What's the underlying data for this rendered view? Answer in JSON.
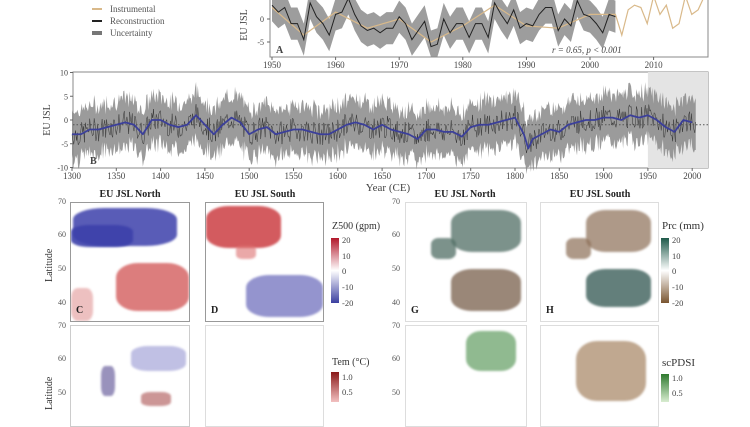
{
  "legend": {
    "items": [
      {
        "label": "Instrumental",
        "color": "#d9b98a"
      },
      {
        "label": "Reconstruction",
        "color": "#222222"
      },
      {
        "label": "Uncertainty",
        "color": "#777777"
      }
    ]
  },
  "chart_data": [
    {
      "type": "line",
      "panel": "A",
      "ylabel": "EU JSL",
      "xlim": [
        1949,
        2019
      ],
      "ylim": [
        -7,
        5
      ],
      "xticks": [
        "1950",
        "1960",
        "1970",
        "1980",
        "1990",
        "2000",
        "2010"
      ],
      "yticks": [
        "0",
        "-5"
      ],
      "annotation": "r = 0.65, p < 0.001",
      "series": [
        {
          "name": "Reconstruction",
          "color": "#222222",
          "x": [
            1950,
            1951,
            1952,
            1953,
            1954,
            1955,
            1956,
            1957,
            1958,
            1959,
            1960,
            1961,
            1962,
            1963,
            1964,
            1965,
            1966,
            1967,
            1968,
            1969,
            1970,
            1971,
            1972,
            1973,
            1974,
            1975,
            1976,
            1977,
            1978,
            1979,
            1980,
            1981,
            1982,
            1983,
            1984,
            1985,
            1986,
            1987,
            1988,
            1989,
            1990,
            1991,
            1992,
            1993,
            1994,
            1995,
            1996,
            1997,
            1998,
            1999,
            2000,
            2001,
            2002,
            2003,
            2004
          ],
          "y": [
            3,
            1.5,
            2.5,
            -1,
            -1,
            -4.5,
            3.5,
            0.5,
            -1,
            -3.5,
            1,
            1.5,
            4.5,
            1,
            -1.5,
            -2.5,
            -2,
            -3,
            -2,
            -2,
            0.5,
            -1,
            -4.5,
            -2.5,
            -0.5,
            -6,
            -5.5,
            0,
            -3,
            -1,
            -1,
            -4,
            -1,
            -1,
            -4,
            3.5,
            1,
            -1,
            2,
            -2,
            -1,
            -1.5,
            1,
            2.5,
            2.5,
            -2.5,
            0,
            -1.5,
            4,
            1,
            0.5,
            -1,
            -3,
            1,
            0.5
          ]
        },
        {
          "name": "Instrumental",
          "color": "#d9b98a",
          "x": [
            1950,
            1955,
            1960,
            1965,
            1970,
            1975,
            1980,
            1985,
            1990,
            1995,
            2000,
            2004,
            2005,
            2006,
            2007,
            2008,
            2009,
            2010,
            2011,
            2012,
            2013,
            2014,
            2015,
            2016,
            2017,
            2018
          ],
          "y": [
            2.5,
            -3.5,
            1.5,
            -2,
            0,
            -5,
            -1.5,
            3,
            -1.5,
            -2,
            1,
            1,
            -3.5,
            2,
            3,
            2.5,
            -1,
            5,
            1,
            3,
            -2,
            -1,
            5,
            1,
            2,
            5
          ]
        },
        {
          "name": "Uncertainty",
          "color": "#777777",
          "half_width": 3.5,
          "x_end": 2004
        }
      ]
    },
    {
      "type": "line",
      "panel": "B",
      "ylabel": "EU JSL",
      "xlabel": "Year (CE)",
      "xlim": [
        1300,
        2020
      ],
      "ylim": [
        -10.5,
        10.5
      ],
      "xticks": [
        "1300",
        "1350",
        "1400",
        "1450",
        "1500",
        "1550",
        "1600",
        "1650",
        "1700",
        "1750",
        "1800",
        "1850",
        "1900",
        "1950",
        "2000"
      ],
      "yticks": [
        "10",
        "5",
        "0",
        "-5",
        "-10"
      ],
      "reference_line": -1,
      "shaded_period": [
        1950,
        2020
      ],
      "series": [
        {
          "name": "Smoothed reconstruction",
          "color": "#3b3f9a",
          "x": [
            1300,
            1310,
            1320,
            1330,
            1340,
            1350,
            1360,
            1370,
            1380,
            1390,
            1400,
            1410,
            1420,
            1430,
            1440,
            1450,
            1460,
            1470,
            1480,
            1490,
            1500,
            1510,
            1520,
            1530,
            1540,
            1550,
            1560,
            1570,
            1580,
            1590,
            1600,
            1610,
            1620,
            1630,
            1640,
            1650,
            1660,
            1670,
            1680,
            1690,
            1700,
            1710,
            1720,
            1730,
            1740,
            1750,
            1760,
            1770,
            1780,
            1790,
            1800,
            1810,
            1815,
            1820,
            1830,
            1840,
            1850,
            1860,
            1870,
            1880,
            1890,
            1900,
            1910,
            1920,
            1930,
            1940,
            1950,
            1960,
            1970,
            1980,
            1990,
            2000
          ],
          "y": [
            -3,
            -3,
            -2,
            -2,
            -1.5,
            -1,
            -0.5,
            -1,
            -3,
            0,
            0,
            -1,
            -1.5,
            -1,
            1,
            -1,
            -3,
            -1,
            0.5,
            -0.5,
            -3,
            -2,
            -1.5,
            -3,
            -2.5,
            -2,
            -2,
            -2.5,
            -3,
            -3,
            -2,
            -1,
            -0.5,
            -1,
            -2,
            -1,
            -2,
            -2.5,
            -3,
            -4,
            -2,
            -2,
            -2.5,
            -2.5,
            -3.5,
            -1.5,
            -1,
            -1,
            -0.5,
            0,
            0.5,
            -3,
            -6,
            -4,
            -3,
            -2,
            -2.5,
            -1,
            -0.5,
            0,
            0,
            0.5,
            0.5,
            0,
            1,
            0.5,
            1,
            0,
            -1.5,
            -2.5,
            0,
            -0.5
          ]
        },
        {
          "name": "Uncertainty",
          "color": "#888888",
          "half_width": 4
        }
      ]
    }
  ],
  "maps": {
    "panels": [
      {
        "letter": "C",
        "title": "EU JSL North"
      },
      {
        "letter": "D",
        "title": "EU JSL South"
      },
      {
        "letter": "G",
        "title": "EU JSL North"
      },
      {
        "letter": "H",
        "title": "EU JSL South"
      }
    ],
    "latitude_label": "Latitude",
    "lat_ticks": [
      "70",
      "60",
      "50",
      "40"
    ],
    "z500": {
      "title": "Z500 (gpm)",
      "ticks": [
        "20",
        "10",
        "0",
        "-10",
        "-20"
      ],
      "colors": [
        "#b2182b",
        "#ffffff",
        "#3b3fa0"
      ]
    },
    "prc": {
      "title": "Prc (mm)",
      "ticks": [
        "20",
        "10",
        "0",
        "-10",
        "-20"
      ],
      "colors": [
        "#1f5a4a",
        "#ffffff",
        "#7a5530"
      ]
    },
    "tem": {
      "title": "Tem (°C)",
      "ticks": [
        "1.0",
        "0.5"
      ]
    },
    "scpdsi": {
      "title": "scPDSI",
      "ticks": [
        "1.0",
        "0.5"
      ]
    }
  }
}
